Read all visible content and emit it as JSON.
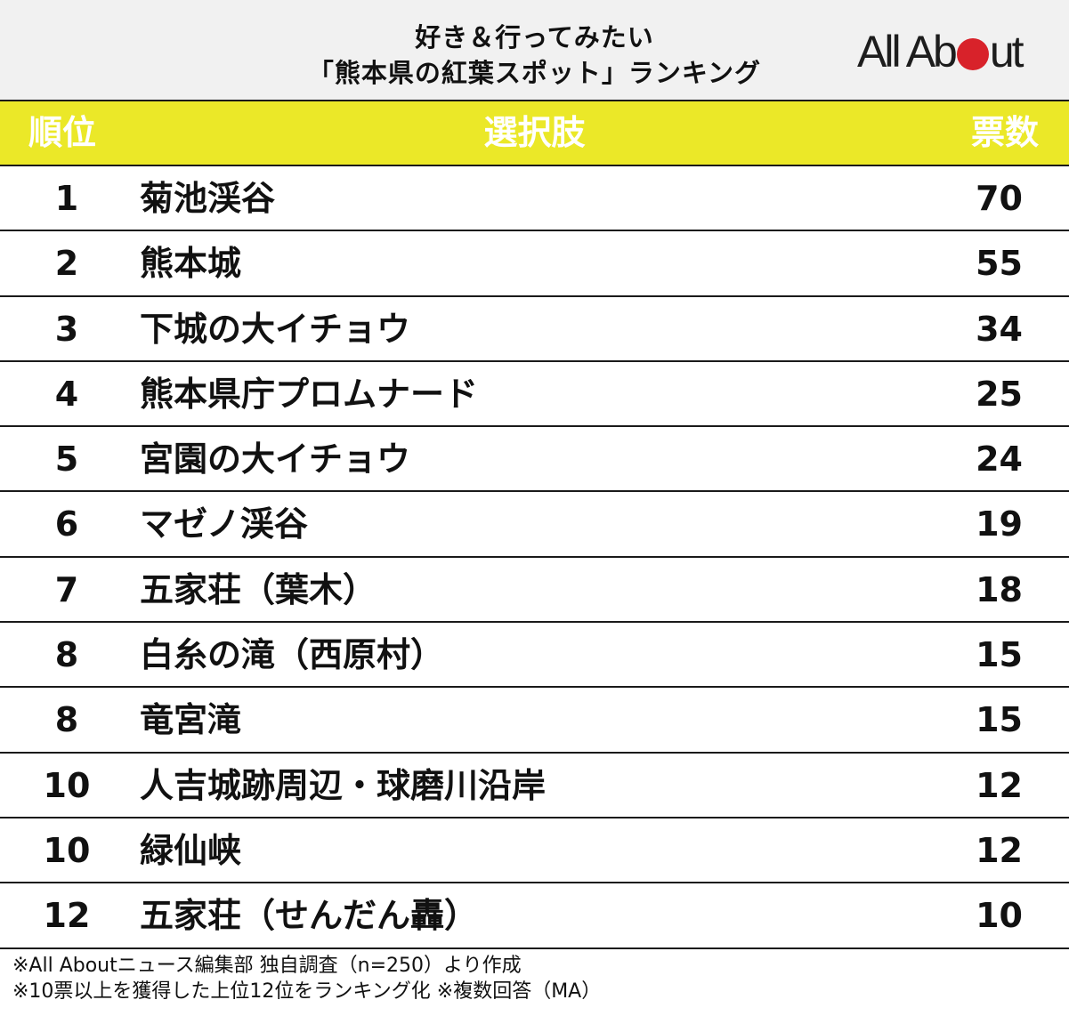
{
  "header": {
    "title_line1": "好き＆行ってみたい",
    "title_line2": "「熊本県の紅葉スポット」ランキング",
    "logo": {
      "text_before": "All Ab",
      "text_after": "ut",
      "dot_color": "#d8222a"
    }
  },
  "table": {
    "columns": {
      "rank": "順位",
      "choice": "選択肢",
      "votes": "票数"
    },
    "header_bg": "#ebe828",
    "rows": [
      {
        "rank": "1",
        "choice": "菊池渓谷",
        "votes": "70"
      },
      {
        "rank": "2",
        "choice": "熊本城",
        "votes": "55"
      },
      {
        "rank": "3",
        "choice": "下城の大イチョウ",
        "votes": "34"
      },
      {
        "rank": "4",
        "choice": "熊本県庁プロムナード",
        "votes": "25"
      },
      {
        "rank": "5",
        "choice": "宮園の大イチョウ",
        "votes": "24"
      },
      {
        "rank": "6",
        "choice": "マゼノ渓谷",
        "votes": "19"
      },
      {
        "rank": "7",
        "choice": "五家荘（葉木）",
        "votes": "18"
      },
      {
        "rank": "8",
        "choice": "白糸の滝（西原村）",
        "votes": "15"
      },
      {
        "rank": "8",
        "choice": "竜宮滝",
        "votes": "15"
      },
      {
        "rank": "10",
        "choice": "人吉城跡周辺・球磨川沿岸",
        "votes": "12"
      },
      {
        "rank": "10",
        "choice": "緑仙峡",
        "votes": "12"
      },
      {
        "rank": "12",
        "choice": "五家荘（せんだん轟）",
        "votes": "10"
      }
    ]
  },
  "footer": {
    "note1": "※All Aboutニュース編集部 独自調査（n=250）より作成",
    "note2": "※10票以上を獲得した上位12位をランキング化 ※複数回答（MA）"
  },
  "chart_data": {
    "type": "table",
    "title": "好き＆行ってみたい「熊本県の紅葉スポット」ランキング",
    "columns": [
      "順位",
      "選択肢",
      "票数"
    ],
    "categories": [
      "菊池渓谷",
      "熊本城",
      "下城の大イチョウ",
      "熊本県庁プロムナード",
      "宮園の大イチョウ",
      "マゼノ渓谷",
      "五家荘（葉木）",
      "白糸の滝（西原村）",
      "竜宮滝",
      "人吉城跡周辺・球磨川沿岸",
      "緑仙峡",
      "五家荘（せんだん轟）"
    ],
    "ranks": [
      1,
      2,
      3,
      4,
      5,
      6,
      7,
      8,
      8,
      10,
      10,
      12
    ],
    "values": [
      70,
      55,
      34,
      25,
      24,
      19,
      18,
      15,
      15,
      12,
      12,
      10
    ],
    "annotations": [
      "※All Aboutニュース編集部 独自調査（n=250）より作成",
      "※10票以上を獲得した上位12位をランキング化 ※複数回答（MA）"
    ]
  }
}
